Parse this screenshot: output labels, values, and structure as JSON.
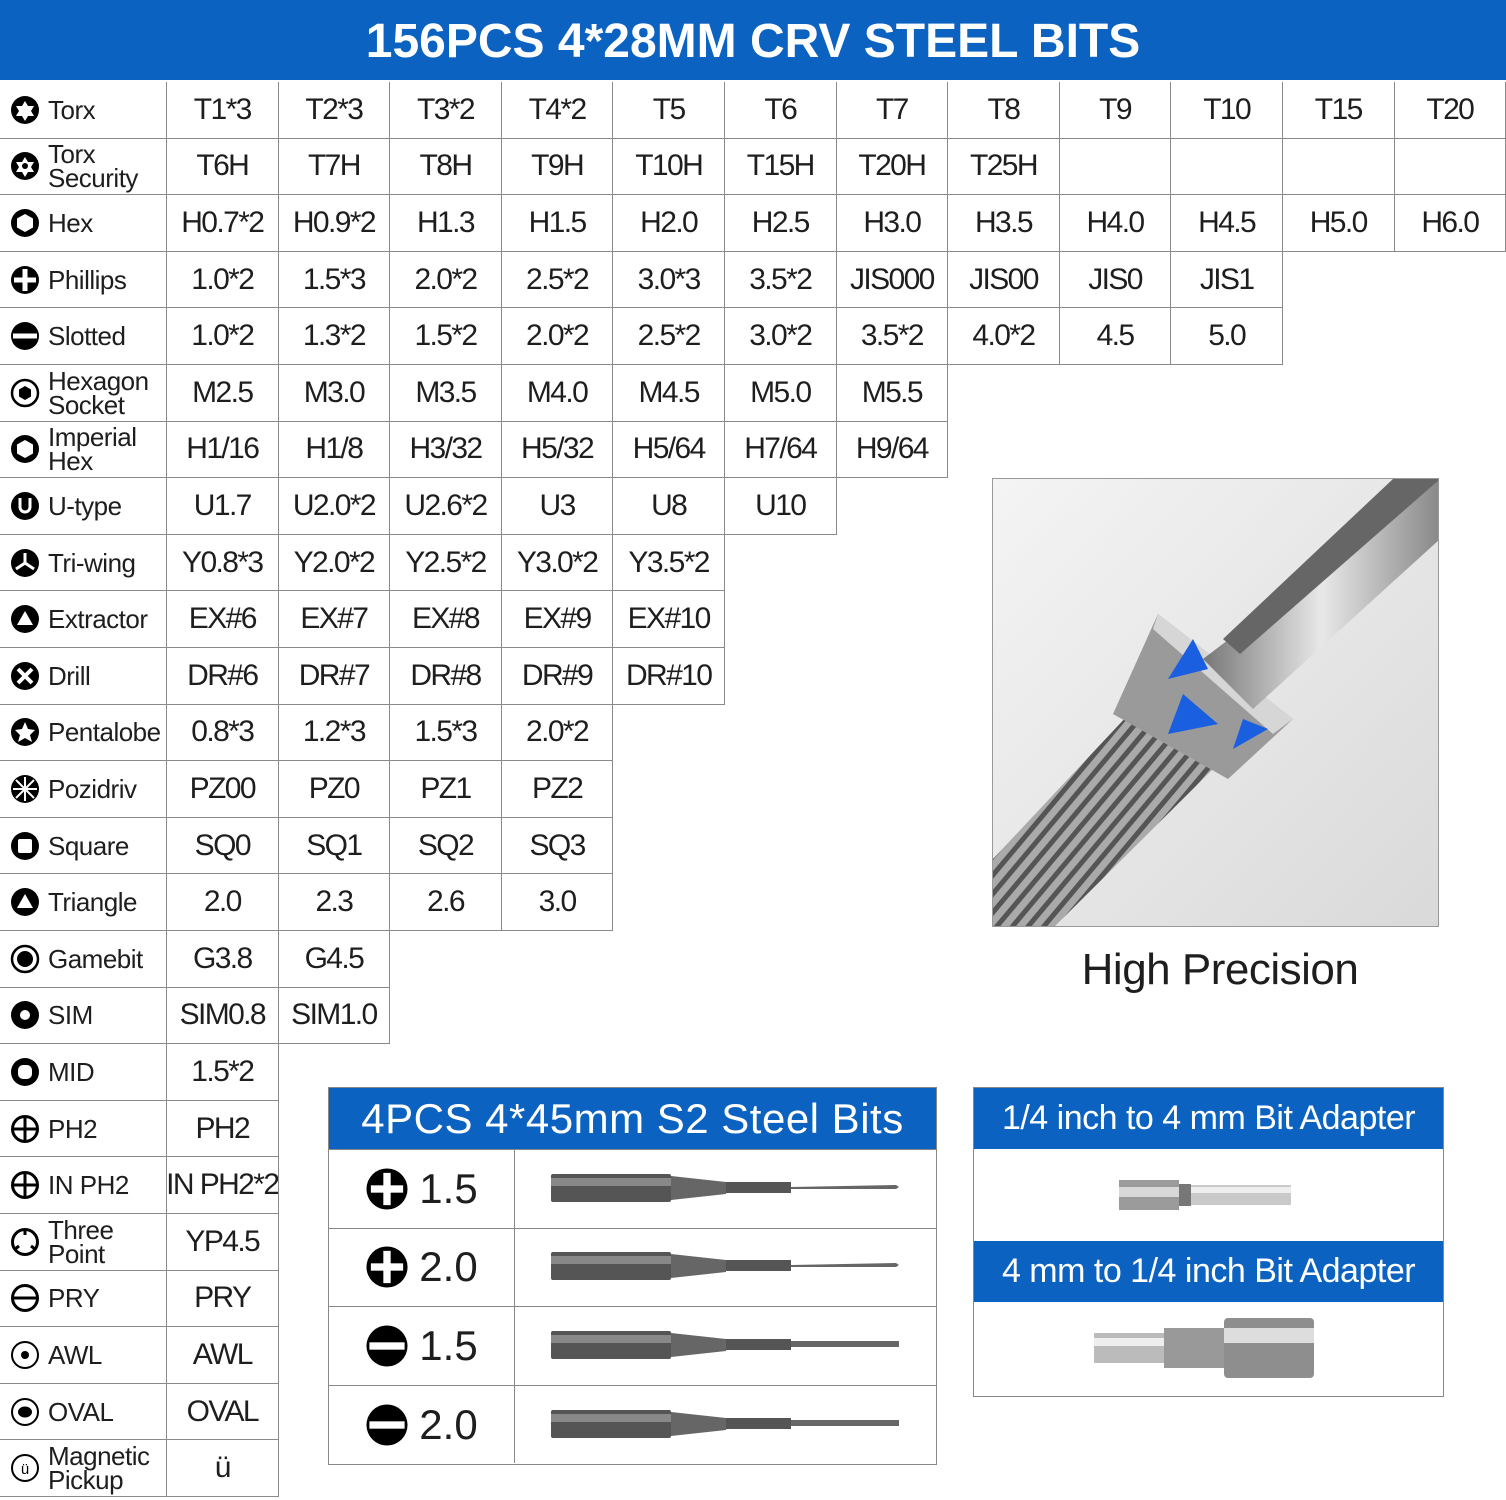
{
  "header": {
    "title": "156PCS 4*28MM CRV STEEL BITS"
  },
  "colors": {
    "brand_blue": "#0b62c1"
  },
  "bits_table": [
    {
      "label": "Torx",
      "icon": "torx-icon",
      "cells": [
        "T1*3",
        "T2*3",
        "T3*2",
        "T4*2",
        "T5",
        "T6",
        "T7",
        "T8",
        "T9",
        "T10",
        "T15",
        "T20"
      ]
    },
    {
      "label": "Torx\nSecurity",
      "icon": "torx-security-icon",
      "cells": [
        "T6H",
        "T7H",
        "T8H",
        "T9H",
        "T10H",
        "T15H",
        "T20H",
        "T25H",
        "",
        "",
        "",
        ""
      ]
    },
    {
      "label": "Hex",
      "icon": "hex-icon",
      "cells": [
        "H0.7*2",
        "H0.9*2",
        "H1.3",
        "H1.5",
        "H2.0",
        "H2.5",
        "H3.0",
        "H3.5",
        "H4.0",
        "H4.5",
        "H5.0",
        "H6.0"
      ]
    },
    {
      "label": "Phillips",
      "icon": "phillips-icon",
      "cells": [
        "1.0*2",
        "1.5*3",
        "2.0*2",
        "2.5*2",
        "3.0*3",
        "3.5*2",
        "JIS000",
        "JIS00",
        "JIS0",
        "JIS1"
      ]
    },
    {
      "label": "Slotted",
      "icon": "slotted-icon",
      "cells": [
        "1.0*2",
        "1.3*2",
        "1.5*2",
        "2.0*2",
        "2.5*2",
        "3.0*2",
        "3.5*2",
        "4.0*2",
        "4.5",
        "5.0"
      ]
    },
    {
      "label": "Hexagon\nSocket",
      "icon": "hexagon-socket-icon",
      "cells": [
        "M2.5",
        "M3.0",
        "M3.5",
        "M4.0",
        "M4.5",
        "M5.0",
        "M5.5"
      ]
    },
    {
      "label": "Imperial\nHex",
      "icon": "imperial-hex-icon",
      "cells": [
        "H1/16",
        "H1/8",
        "H3/32",
        "H5/32",
        "H5/64",
        "H7/64",
        "H9/64"
      ]
    },
    {
      "label": "U-type",
      "icon": "u-type-icon",
      "cells": [
        "U1.7",
        "U2.0*2",
        "U2.6*2",
        "U3",
        "U8",
        "U10"
      ]
    },
    {
      "label": "Tri-wing",
      "icon": "tri-wing-icon",
      "cells": [
        "Y0.8*3",
        "Y2.0*2",
        "Y2.5*2",
        "Y3.0*2",
        "Y3.5*2"
      ]
    },
    {
      "label": "Extractor",
      "icon": "extractor-icon",
      "cells": [
        "EX#6",
        "EX#7",
        "EX#8",
        "EX#9",
        "EX#10"
      ]
    },
    {
      "label": "Drill",
      "icon": "drill-icon",
      "cells": [
        "DR#6",
        "DR#7",
        "DR#8",
        "DR#9",
        "DR#10"
      ]
    },
    {
      "label": "Pentalobe",
      "icon": "pentalobe-icon",
      "cells": [
        "0.8*3",
        "1.2*3",
        "1.5*3",
        "2.0*2"
      ]
    },
    {
      "label": "Pozidriv",
      "icon": "pozidriv-icon",
      "cells": [
        "PZ00",
        "PZ0",
        "PZ1",
        "PZ2"
      ]
    },
    {
      "label": "Square",
      "icon": "square-icon",
      "cells": [
        "SQ0",
        "SQ1",
        "SQ2",
        "SQ3"
      ]
    },
    {
      "label": "Triangle",
      "icon": "triangle-icon",
      "cells": [
        "2.0",
        "2.3",
        "2.6",
        "3.0"
      ]
    },
    {
      "label": "Gamebit",
      "icon": "gamebit-icon",
      "cells": [
        "G3.8",
        "G4.5"
      ]
    },
    {
      "label": "SIM",
      "icon": "sim-icon",
      "cells": [
        "SIM0.8",
        "SIM1.0"
      ]
    },
    {
      "label": "MID",
      "icon": "mid-icon",
      "cells": [
        "1.5*2"
      ]
    },
    {
      "label": "PH2",
      "icon": "ph2-icon",
      "cells": [
        "PH2"
      ]
    },
    {
      "label": "IN PH2",
      "icon": "in-ph2-icon",
      "cells": [
        "IN PH2*2"
      ]
    },
    {
      "label": "Three\nPoint",
      "icon": "three-point-icon",
      "cells": [
        "YP4.5"
      ]
    },
    {
      "label": "PRY",
      "icon": "pry-icon",
      "cells": [
        "PRY"
      ]
    },
    {
      "label": "AWL",
      "icon": "awl-icon",
      "cells": [
        "AWL"
      ]
    },
    {
      "label": "OVAL",
      "icon": "oval-icon",
      "cells": [
        "OVAL"
      ]
    },
    {
      "label": "Magnetic\nPickup",
      "icon": "magnetic-pickup-icon",
      "cells": [
        "ü"
      ]
    }
  ],
  "feature": {
    "caption": "High Precision"
  },
  "s2_bits": {
    "title": "4PCS 4*45mm S2 Steel Bits",
    "rows": [
      {
        "icon": "phillips-icon",
        "size": "1.5"
      },
      {
        "icon": "phillips-icon",
        "size": "2.0"
      },
      {
        "icon": "slotted-icon",
        "size": "1.5"
      },
      {
        "icon": "slotted-icon",
        "size": "2.0"
      }
    ]
  },
  "adapters": [
    {
      "title": "1/4 inch to 4 mm Bit Adapter"
    },
    {
      "title": "4 mm to 1/4 inch Bit Adapter"
    }
  ]
}
